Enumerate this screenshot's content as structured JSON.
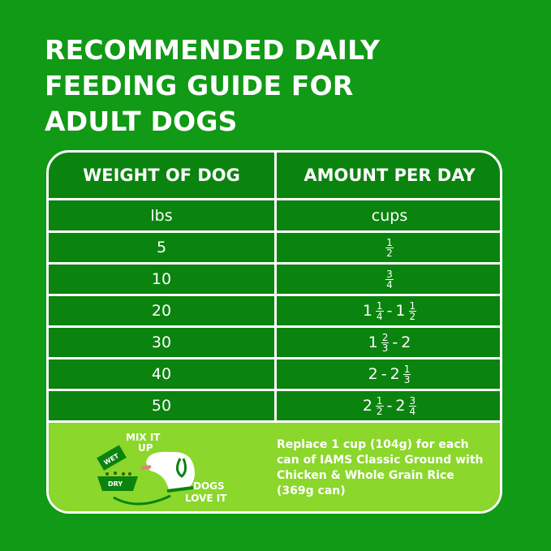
{
  "title": [
    "RECOMMENDED DAILY",
    "FEEDING GUIDE FOR",
    "ADULT DOGS"
  ],
  "table": {
    "headers": [
      "WEIGHT OF DOG",
      "AMOUNT PER DAY"
    ],
    "units": [
      "lbs",
      "cups"
    ],
    "rows": [
      {
        "weight": "5",
        "amount": [
          {
            "n": "1",
            "d": "2"
          }
        ]
      },
      {
        "weight": "10",
        "amount": [
          {
            "n": "3",
            "d": "4"
          }
        ]
      },
      {
        "weight": "20",
        "amount": [
          {
            "t": "1"
          },
          {
            "n": "1",
            "d": "4"
          },
          {
            "t": "-"
          },
          {
            "t": "1"
          },
          {
            "n": "1",
            "d": "2"
          }
        ]
      },
      {
        "weight": "30",
        "amount": [
          {
            "t": "1"
          },
          {
            "n": "2",
            "d": "3"
          },
          {
            "t": "-"
          },
          {
            "t": "2"
          }
        ]
      },
      {
        "weight": "40",
        "amount": [
          {
            "t": "2"
          },
          {
            "t": "-"
          },
          {
            "t": "2"
          },
          {
            "n": "1",
            "d": "3"
          }
        ]
      },
      {
        "weight": "50",
        "amount": [
          {
            "t": "2"
          },
          {
            "n": "1",
            "d": "2"
          },
          {
            "t": "-"
          },
          {
            "t": "2"
          },
          {
            "n": "3",
            "d": "4"
          }
        ]
      }
    ]
  },
  "mix": {
    "mix_label": "MIX IT",
    "up_label": "UP",
    "wet_label": "WET",
    "dry_label": "DRY",
    "dogs_label": "DOGS",
    "love_label": "LOVE IT"
  },
  "note": "Replace 1 cup (104g) for each can of IAMS Classic Ground with Chicken & Whole Grain Rice (369g can)",
  "colors": {
    "background": "#109a15",
    "table": "#0b830f",
    "lime": "#8bd72b"
  }
}
